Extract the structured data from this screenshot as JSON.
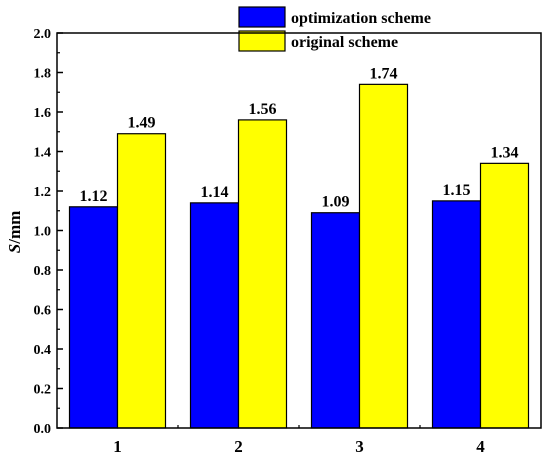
{
  "chart_data": {
    "type": "bar",
    "categories": [
      "1",
      "2",
      "3",
      "4"
    ],
    "series": [
      {
        "name": "optimization scheme",
        "values": [
          1.12,
          1.14,
          1.09,
          1.15
        ],
        "color": "#0000ff"
      },
      {
        "name": "original scheme",
        "values": [
          1.49,
          1.56,
          1.74,
          1.34
        ],
        "color": "#ffff00"
      }
    ],
    "data_labels": [
      [
        "1.12",
        "1.14",
        "1.09",
        "1.15"
      ],
      [
        "1.49",
        "1.56",
        "1.74",
        "1.34"
      ]
    ],
    "ylabel_italic": "S",
    "ylabel_rest": "/mm",
    "ylim": [
      0,
      2.0
    ],
    "yticks": [
      "0.0",
      "0.2",
      "0.4",
      "0.6",
      "0.8",
      "1.0",
      "1.2",
      "1.4",
      "1.6",
      "1.8",
      "2.0"
    ],
    "legend_position": "top-center",
    "grid": false
  }
}
